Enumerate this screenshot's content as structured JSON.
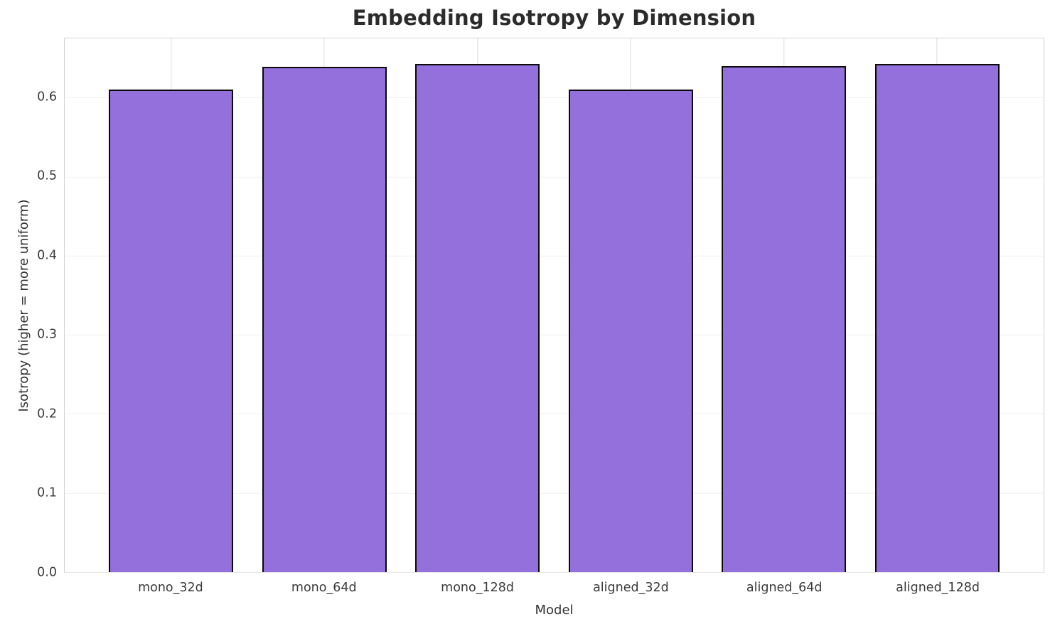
{
  "chart_data": {
    "type": "bar",
    "title": "Embedding Isotropy by Dimension",
    "xlabel": "Model",
    "ylabel": "Isotropy (higher = more uniform)",
    "categories": [
      "mono_32d",
      "mono_64d",
      "mono_128d",
      "aligned_32d",
      "aligned_64d",
      "aligned_128d"
    ],
    "values": [
      0.61,
      0.639,
      0.643,
      0.61,
      0.64,
      0.643
    ],
    "ylim": [
      0,
      0.675
    ],
    "yticks": [
      0.0,
      0.1,
      0.2,
      0.3,
      0.4,
      0.5,
      0.6
    ],
    "grid": "both",
    "legend": "none",
    "bar_color": "#9370DB",
    "bar_edge_color": "#0a0a0a",
    "background_color": "#ffffff",
    "gridline_color_horizontal": "#f0f0f0",
    "gridline_color_vertical": "#dedede",
    "spine_color": "#d2d2d2",
    "text_color": "#333333"
  }
}
